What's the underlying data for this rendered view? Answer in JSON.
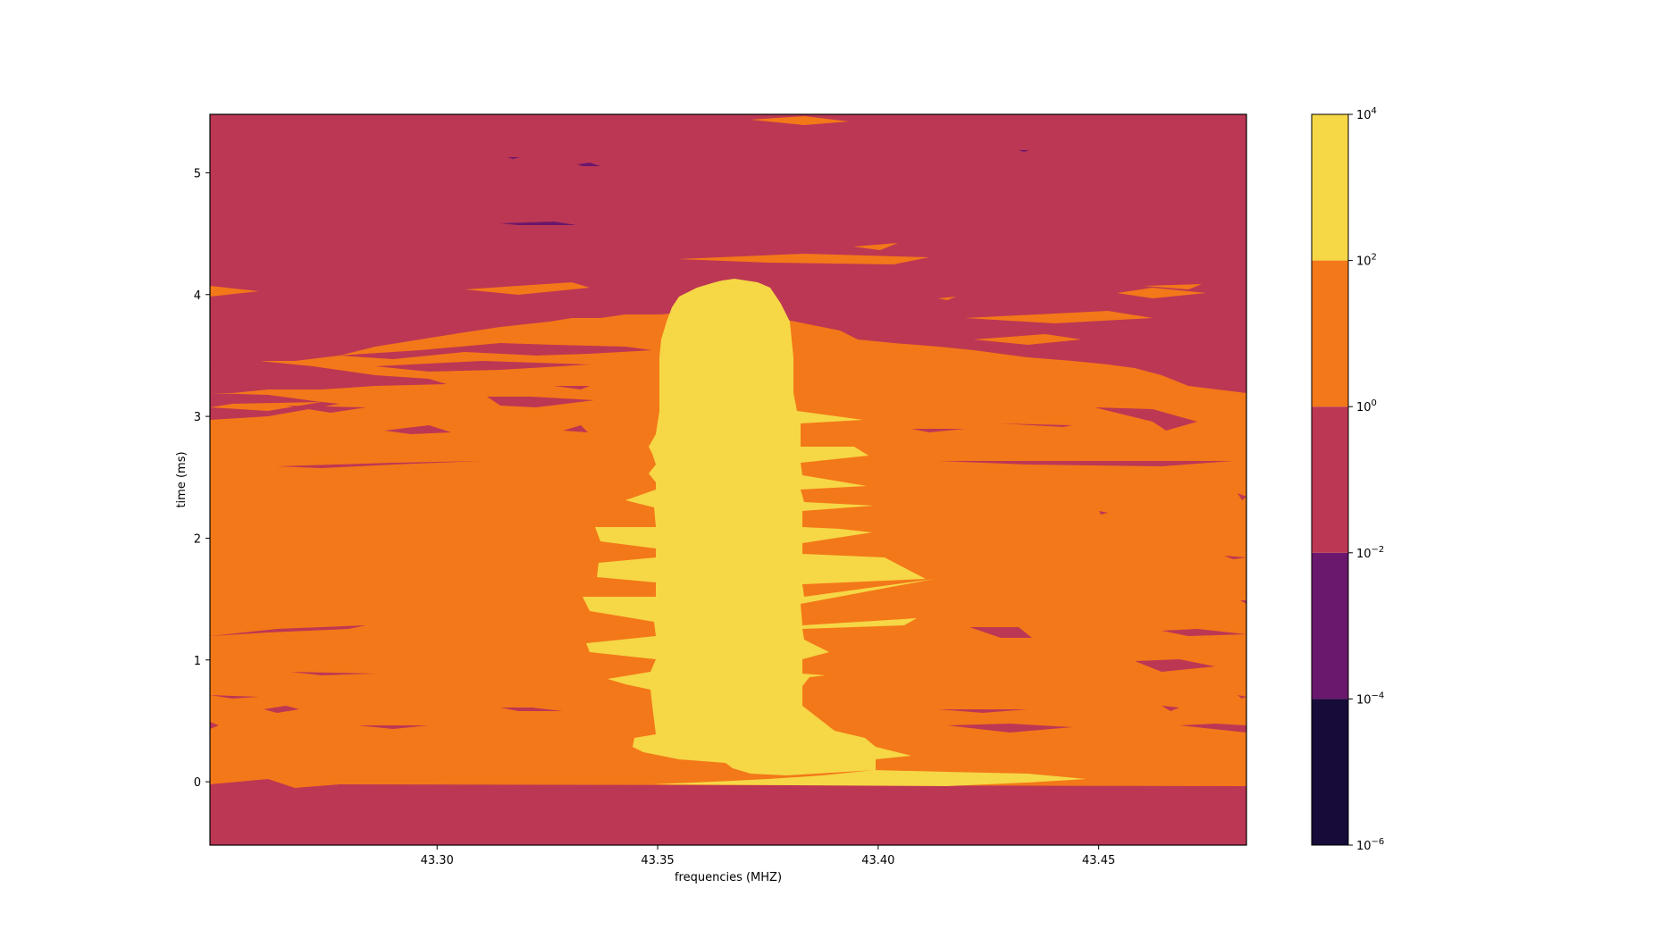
{
  "chart_data": {
    "type": "heatmap",
    "subtype": "filled-contour",
    "title": "",
    "xlabel": "frequencies (MHZ)",
    "ylabel": "time (ms)",
    "x_ticks": [
      "43.30",
      "43.35",
      "43.40",
      "43.45"
    ],
    "x_tick_values": [
      43.3,
      43.35,
      43.4,
      43.45
    ],
    "xlim": [
      43.2485,
      43.4835
    ],
    "y_ticks": [
      "0",
      "1",
      "2",
      "3",
      "4",
      "5"
    ],
    "y_tick_values": [
      0,
      1,
      2,
      3,
      4,
      5
    ],
    "ylim": [
      -0.52,
      5.48
    ],
    "grid": false,
    "colorbar": {
      "scale": "log",
      "tick_bases": [
        "10",
        "10",
        "10",
        "10",
        "10",
        "10"
      ],
      "tick_exponents": [
        "4",
        "2",
        "0",
        "−2",
        "−4",
        "−6"
      ],
      "tick_values": [
        10000,
        100,
        1,
        0.01,
        0.0001,
        1e-06
      ],
      "levels": [
        {
          "from": 1e-06,
          "to": 0.0001,
          "color": "#160b39"
        },
        {
          "from": 0.0001,
          "to": 0.01,
          "color": "#6a176e"
        },
        {
          "from": 0.01,
          "to": 1,
          "color": "#bc3754"
        },
        {
          "from": 1,
          "to": 100,
          "color": "#f37819"
        },
        {
          "from": 100,
          "to": 10000,
          "color": "#f6d746"
        }
      ]
    },
    "regions": [
      {
        "level": 2,
        "value_range": [
          0.01,
          1
        ],
        "note": "background at top (t > ~4 ms) and bottom (t < ~0 ms)"
      },
      {
        "level": 3,
        "value_range": [
          1,
          100
        ],
        "x_range": [
          43.2485,
          43.4835
        ],
        "y_range": [
          -0.05,
          4.3
        ]
      },
      {
        "level": 4,
        "value_range": [
          100,
          10000
        ],
        "x_center": 43.366,
        "x_range": [
          43.351,
          43.381
        ],
        "y_range": [
          0.0,
          4.1
        ]
      },
      {
        "level": 4,
        "value_range": [
          100,
          10000
        ],
        "x_range": [
          43.34,
          43.45
        ],
        "y_range": [
          -0.05,
          0.12
        ]
      }
    ]
  }
}
